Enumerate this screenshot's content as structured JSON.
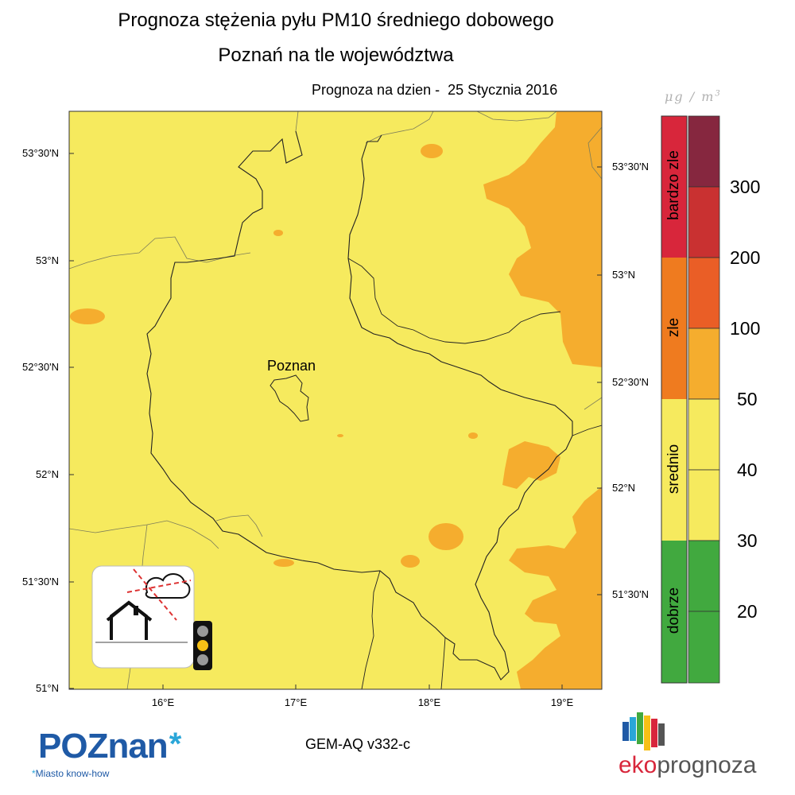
{
  "header": {
    "title_line1": "Prognoza stężenia pyłu PM10 średniego dobowego",
    "title_line2": "Poznań na tle województwa",
    "forecast_date": "Prognoza na dzien -  25 Stycznia 2016"
  },
  "map": {
    "city_label": "Poznan",
    "lat_labels_left": [
      "53°30'N",
      "53°N",
      "52°30'N",
      "52°N",
      "51°30'N",
      "51°N"
    ],
    "lat_labels_right": [
      "53°30'N",
      "53°N",
      "52°30'N",
      "52°N",
      "51°30'N"
    ],
    "lon_labels": [
      "16°E",
      "17°E",
      "18°E",
      "19°E"
    ],
    "background_color": "#f6ea5e",
    "hotspot_color": "#f5ad2e",
    "inset_icon": "smog-house-traffic-light-icon"
  },
  "legend": {
    "unit": "μg / m",
    "unit_exponent": "3",
    "categories": [
      {
        "label": "bardzo zle",
        "color": "#d8263b"
      },
      {
        "label": "zle",
        "color": "#ef7b1f"
      },
      {
        "label": "srednio",
        "color": "#f6ea5e"
      },
      {
        "label": "dobrze",
        "color": "#41a93f"
      }
    ],
    "scale_levels": [
      {
        "value": "300",
        "color": "#86273f"
      },
      {
        "value": "200",
        "color": "#c93131"
      },
      {
        "value": "100",
        "color": "#ea5e26"
      },
      {
        "value": "50",
        "color": "#f5ad2e"
      },
      {
        "value": "40",
        "color": "#f6ea5e"
      },
      {
        "value": "30",
        "color": "#f6ea5e"
      },
      {
        "value": "20",
        "color": "#41a93f"
      }
    ]
  },
  "footer": {
    "poznan_logo": "POZnan",
    "poznan_star": "*",
    "poznan_tagline": "Miasto know-how",
    "model": "GEM-AQ v332-c",
    "eko_logo_a": "eko",
    "eko_logo_b": "prognoza"
  }
}
